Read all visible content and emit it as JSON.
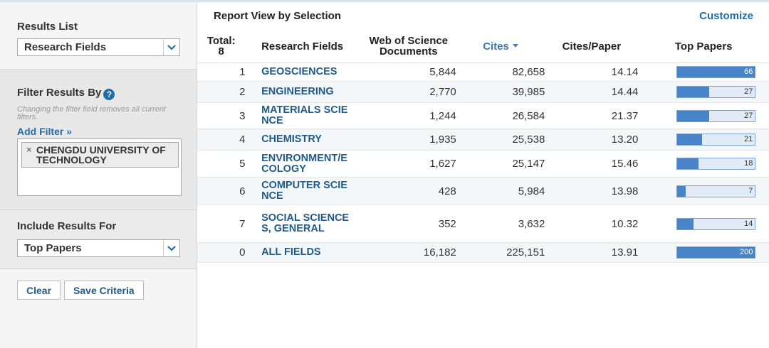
{
  "sidebar": {
    "results_list": {
      "label": "Results List",
      "selected": "Research Fields"
    },
    "filter": {
      "title": "Filter Results By",
      "help": "?",
      "note": "Changing the filter field removes all current filters.",
      "add_filter": "Add Filter »",
      "tags": [
        "CHENGDU UNIVERSITY OF TECHNOLOGY"
      ],
      "remove": "×"
    },
    "include": {
      "label": "Include Results For",
      "selected": "Top Papers"
    },
    "buttons": [
      "Clear",
      "Save Criteria"
    ]
  },
  "report": {
    "title": "Report View by Selection",
    "customize": "Customize",
    "table": {
      "total_label": "Total:",
      "total": 8,
      "headers": [
        "Research Fields",
        "Web of Science Documents",
        "Cites",
        "Cites/Paper",
        "Top Papers"
      ],
      "rows": [
        [
          1,
          "GEOSCIENCES",
          "5,844",
          "82,658",
          "14.14",
          66
        ],
        [
          2,
          "ENGINEERING",
          "2,770",
          "39,985",
          "14.44",
          27
        ],
        [
          3,
          "MATERIALS SCIENCE",
          "1,244",
          "26,584",
          "21.37",
          27
        ],
        [
          4,
          "CHEMISTRY",
          "1,935",
          "25,538",
          "13.20",
          21
        ],
        [
          5,
          "ENVIRONMENT/ECOLOGY",
          "1,627",
          "25,147",
          "15.46",
          18
        ],
        [
          6,
          "COMPUTER SCIENCE",
          "428",
          "5,984",
          "13.98",
          7
        ],
        [
          7,
          "SOCIAL SCIENCES, GENERAL",
          "352",
          "3,632",
          "10.32",
          14
        ]
      ],
      "total_row": [
        0,
        "ALL FIELDS",
        "16,182",
        "225,151",
        "13.91",
        200
      ]
    }
  }
}
